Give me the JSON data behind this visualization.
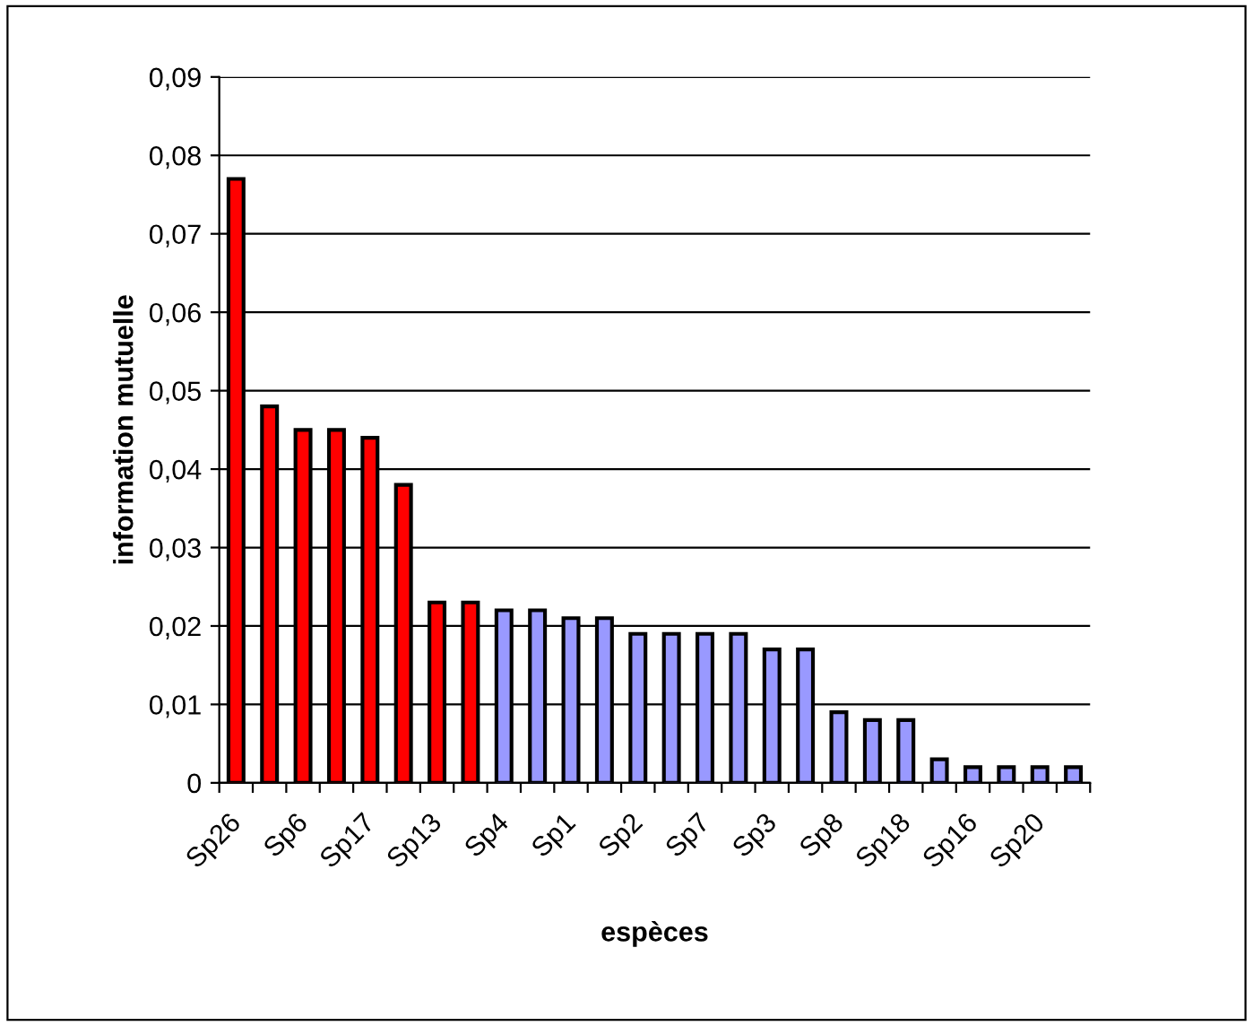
{
  "chart_data": {
    "type": "bar",
    "xlabel": "espèces",
    "ylabel": "information mutuelle",
    "categories": [
      "Sp26",
      null,
      "Sp6",
      null,
      "Sp17",
      null,
      "Sp13",
      null,
      "Sp4",
      null,
      "Sp1",
      null,
      "Sp2",
      null,
      "Sp7",
      null,
      "Sp3",
      null,
      "Sp8",
      null,
      "Sp18",
      null,
      "Sp16",
      null,
      "Sp20",
      null
    ],
    "values": [
      0.077,
      0.048,
      0.045,
      0.045,
      0.044,
      0.038,
      0.023,
      0.023,
      0.022,
      0.022,
      0.021,
      0.021,
      0.019,
      0.019,
      0.019,
      0.019,
      0.017,
      0.017,
      0.009,
      0.008,
      0.008,
      0.003,
      0.002,
      0.002,
      0.002,
      0.002
    ],
    "colors": [
      "#ff0000",
      "#ff0000",
      "#ff0000",
      "#ff0000",
      "#ff0000",
      "#ff0000",
      "#ff0000",
      "#ff0000",
      "#9999ff",
      "#9999ff",
      "#9999ff",
      "#9999ff",
      "#9999ff",
      "#9999ff",
      "#9999ff",
      "#9999ff",
      "#9999ff",
      "#9999ff",
      "#9999ff",
      "#9999ff",
      "#9999ff",
      "#9999ff",
      "#9999ff",
      "#9999ff",
      "#9999ff",
      "#9999ff"
    ],
    "ylim": [
      0,
      0.09
    ],
    "yticks": [
      {
        "value": 0,
        "label": "0"
      },
      {
        "value": 0.01,
        "label": "0,01"
      },
      {
        "value": 0.02,
        "label": "0,02"
      },
      {
        "value": 0.03,
        "label": "0,03"
      },
      {
        "value": 0.04,
        "label": "0,04"
      },
      {
        "value": 0.05,
        "label": "0,05"
      },
      {
        "value": 0.06,
        "label": "0,06"
      },
      {
        "value": 0.07,
        "label": "0,07"
      },
      {
        "value": 0.08,
        "label": "0,08"
      },
      {
        "value": 0.09,
        "label": "0,09"
      }
    ],
    "grid": "y",
    "legend": false
  }
}
